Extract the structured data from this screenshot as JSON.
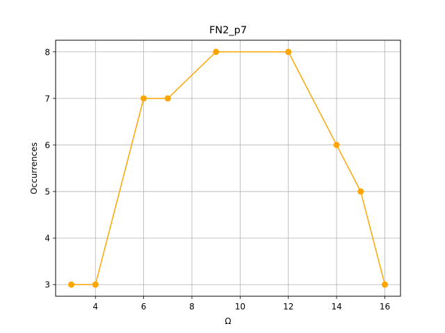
{
  "chart_data": {
    "type": "line",
    "title": "FN2_p7",
    "xlabel": "Ω",
    "ylabel": "Occurrences",
    "x": [
      3,
      4,
      6,
      7,
      9,
      12,
      14,
      15,
      16
    ],
    "series": [
      {
        "values": [
          3,
          3,
          7,
          7,
          8,
          8,
          6,
          5,
          3
        ],
        "color": "#ffa500",
        "marker": "circle"
      }
    ],
    "xlim": [
      2.35,
      16.65
    ],
    "ylim": [
      2.75,
      8.25
    ],
    "xticks": [
      4,
      6,
      8,
      10,
      12,
      14,
      16
    ],
    "yticks": [
      3,
      4,
      5,
      6,
      7,
      8
    ],
    "grid": true,
    "legend": "none"
  }
}
